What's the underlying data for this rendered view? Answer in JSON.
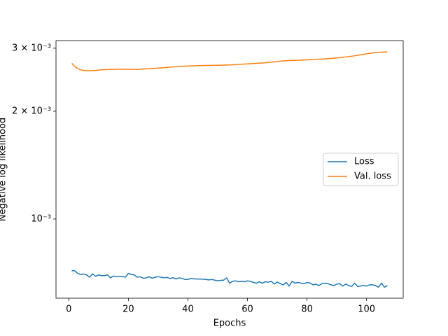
{
  "chart_data": {
    "type": "line",
    "xlabel": "Epochs",
    "ylabel": "Negative log likelihood",
    "log_y": true,
    "legend": "center right",
    "xlim": [
      -4.3,
      112.3
    ],
    "xticks": [
      0,
      20,
      40,
      60,
      80,
      100
    ],
    "ylim": [
      0.000601,
      0.00315
    ],
    "yticks": [
      {
        "value": 0.001,
        "label": "10⁻³"
      },
      {
        "value": 0.002,
        "label": "2 × 10⁻³"
      },
      {
        "value": 0.003,
        "label": "3 × 10⁻³"
      }
    ],
    "x": [
      1,
      2,
      3,
      4,
      5,
      6,
      7,
      8,
      9,
      10,
      11,
      12,
      13,
      14,
      15,
      16,
      17,
      18,
      19,
      20,
      21,
      22,
      23,
      24,
      25,
      26,
      27,
      28,
      29,
      30,
      31,
      32,
      33,
      34,
      35,
      36,
      37,
      38,
      39,
      40,
      41,
      42,
      43,
      44,
      45,
      46,
      47,
      48,
      49,
      50,
      51,
      52,
      53,
      54,
      55,
      56,
      57,
      58,
      59,
      60,
      61,
      62,
      63,
      64,
      65,
      66,
      67,
      68,
      69,
      70,
      71,
      72,
      73,
      74,
      75,
      76,
      77,
      78,
      79,
      80,
      81,
      82,
      83,
      84,
      85,
      86,
      87,
      88,
      89,
      90,
      91,
      92,
      93,
      94,
      95,
      96,
      97,
      98,
      99,
      100,
      101,
      102,
      103,
      104,
      105,
      106,
      107
    ],
    "series": [
      {
        "name": "Loss",
        "color": "#1f77b4",
        "values": [
          0.000717,
          0.000717,
          0.000705,
          0.0007,
          0.000702,
          0.000698,
          0.000688,
          0.000703,
          0.000692,
          0.000698,
          0.000695,
          0.000695,
          0.000698,
          0.000685,
          0.000693,
          0.00069,
          0.000692,
          0.000691,
          0.000688,
          0.000705,
          0.0007,
          0.000698,
          0.000688,
          0.00069,
          0.000683,
          0.000685,
          0.00069,
          0.000683,
          0.000688,
          0.00069,
          0.000688,
          0.000685,
          0.000687,
          0.000682,
          0.000686,
          0.00068,
          0.000685,
          0.000683,
          0.000678,
          0.000678,
          0.000682,
          0.000681,
          0.00068,
          0.00068,
          0.000679,
          0.000678,
          0.000676,
          0.000678,
          0.000675,
          0.000672,
          0.000674,
          0.000675,
          0.000685,
          0.000662,
          0.00067,
          0.000672,
          0.000668,
          0.00067,
          0.000668,
          0.000672,
          0.00067,
          0.000665,
          0.000662,
          0.000668,
          0.000662,
          0.000668,
          0.000666,
          0.00067,
          0.000658,
          0.000667,
          0.00066,
          0.000655,
          0.000665,
          0.00065,
          0.00067,
          0.000662,
          0.000665,
          0.000662,
          0.00066,
          0.000665,
          0.000663,
          0.000655,
          0.000658,
          0.000652,
          0.00066,
          0.000662,
          0.00066,
          0.000655,
          0.000652,
          0.000658,
          0.00066,
          0.00065,
          0.000658,
          0.000652,
          0.000648,
          0.000662,
          0.000648,
          0.00065,
          0.000652,
          0.00065,
          0.000655,
          0.000655,
          0.000652,
          0.000645,
          0.000662,
          0.000645,
          0.000652
        ]
      },
      {
        "name": "Val. loss",
        "color": "#ff7f0e",
        "values": [
          0.00272,
          0.00267,
          0.00263,
          0.00261,
          0.0026,
          0.002595,
          0.002595,
          0.002598,
          0.0026,
          0.002605,
          0.00261,
          0.002613,
          0.002615,
          0.002617,
          0.002618,
          0.002619,
          0.00262,
          0.00262,
          0.00262,
          0.00262,
          0.002618,
          0.002617,
          0.002617,
          0.00262,
          0.002623,
          0.002626,
          0.00263,
          0.002633,
          0.002636,
          0.00264,
          0.002643,
          0.002647,
          0.002651,
          0.002655,
          0.00266,
          0.002664,
          0.002668,
          0.002671,
          0.002673,
          0.002675,
          0.002677,
          0.002679,
          0.00268,
          0.002682,
          0.002683,
          0.002684,
          0.002685,
          0.002686,
          0.002687,
          0.002688,
          0.002689,
          0.00269,
          0.002692,
          0.002694,
          0.002697,
          0.0027,
          0.002703,
          0.002706,
          0.002709,
          0.002712,
          0.002715,
          0.002718,
          0.002721,
          0.002724,
          0.002728,
          0.002732,
          0.002737,
          0.002742,
          0.002748,
          0.002754,
          0.002759,
          0.002764,
          0.002767,
          0.00277,
          0.002772,
          0.002774,
          0.002776,
          0.002778,
          0.00278,
          0.002783,
          0.002786,
          0.002789,
          0.002792,
          0.002795,
          0.002798,
          0.002801,
          0.002805,
          0.002809,
          0.002813,
          0.002818,
          0.002823,
          0.002829,
          0.002835,
          0.002842,
          0.002849,
          0.002857,
          0.002866,
          0.002875,
          0.002884,
          0.002893,
          0.002902,
          0.00291,
          0.002917,
          0.002922,
          0.002925,
          0.002927,
          0.002928
        ]
      }
    ]
  }
}
